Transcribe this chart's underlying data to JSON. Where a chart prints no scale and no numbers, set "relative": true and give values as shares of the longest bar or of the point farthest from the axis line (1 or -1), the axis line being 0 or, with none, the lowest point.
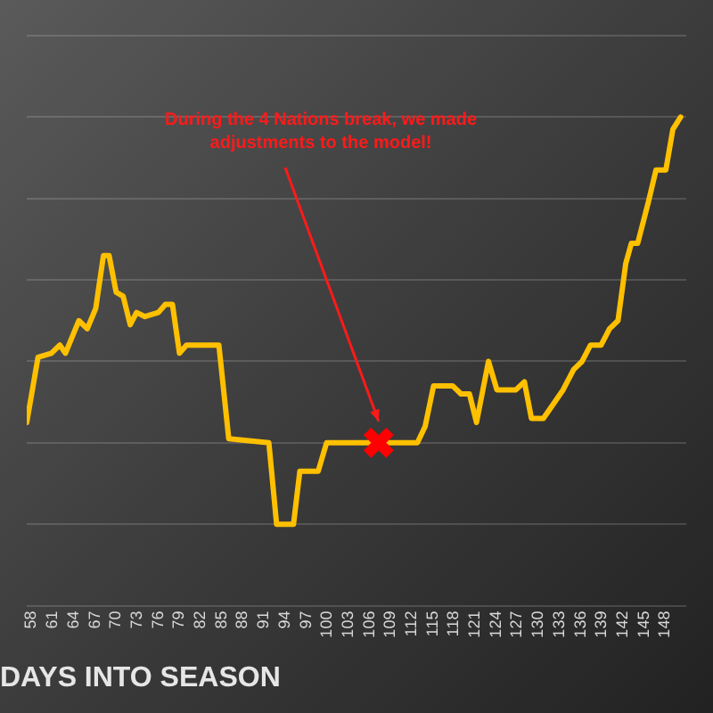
{
  "chart_data": {
    "type": "line",
    "relative": true,
    "xlabel": "DAYS INTO SEASON",
    "xlim": [
      57.3,
      151
    ],
    "xticks": [
      58,
      61,
      64,
      67,
      70,
      73,
      76,
      79,
      82,
      85,
      88,
      91,
      94,
      97,
      100,
      103,
      106,
      109,
      112,
      115,
      118,
      121,
      124,
      127,
      130,
      133,
      136,
      139,
      142,
      145,
      148
    ],
    "grid": "y",
    "legend": false,
    "marker": "none",
    "line_style": "solid",
    "series": [
      {
        "type": "line",
        "color": "#ffc000",
        "x": [
          57.3,
          58.9,
          60.8,
          62.0,
          62.8,
          64.7,
          65.9,
          67.1,
          68.2,
          69.0,
          70.0,
          71.0,
          72.0,
          72.9,
          74.1,
          76.0,
          77.0,
          78.0,
          79.0,
          80.0,
          84.6,
          86.0,
          91.7,
          92.8,
          95.2,
          96.1,
          98.7,
          99.9,
          112.8,
          113.9,
          115.1,
          117.8,
          119.0,
          120.2,
          121.2,
          122.9,
          124.1,
          126.8,
          128.0,
          129.0,
          130.7,
          133.5,
          135.0,
          136.2,
          137.4,
          138.9,
          140.1,
          141.3,
          142.4,
          143.2,
          144.1,
          145.6,
          146.7,
          148.1,
          149.1,
          150.2
        ],
        "values": [
          0.25,
          0.41,
          0.42,
          0.44,
          0.42,
          0.5,
          0.48,
          0.53,
          0.66,
          0.66,
          0.57,
          0.56,
          0.49,
          0.52,
          0.51,
          0.52,
          0.54,
          0.54,
          0.42,
          0.44,
          0.44,
          0.21,
          0.2,
          0,
          0,
          0.13,
          0.13,
          0.2,
          0.2,
          0.24,
          0.34,
          0.34,
          0.32,
          0.32,
          0.25,
          0.4,
          0.33,
          0.33,
          0.35,
          0.26,
          0.26,
          0.33,
          0.38,
          0.4,
          0.44,
          0.44,
          0.48,
          0.5,
          0.64,
          0.69,
          0.69,
          0.79,
          0.87,
          0.87,
          0.97,
          1
        ]
      },
      {
        "type": "scatter",
        "marker": "cross",
        "color": "#ff0000",
        "x": [
          107.3
        ],
        "values": [
          0.2
        ]
      }
    ],
    "annotations": [
      "During the 4 Nations break, we made adjustments to the model!"
    ]
  }
}
